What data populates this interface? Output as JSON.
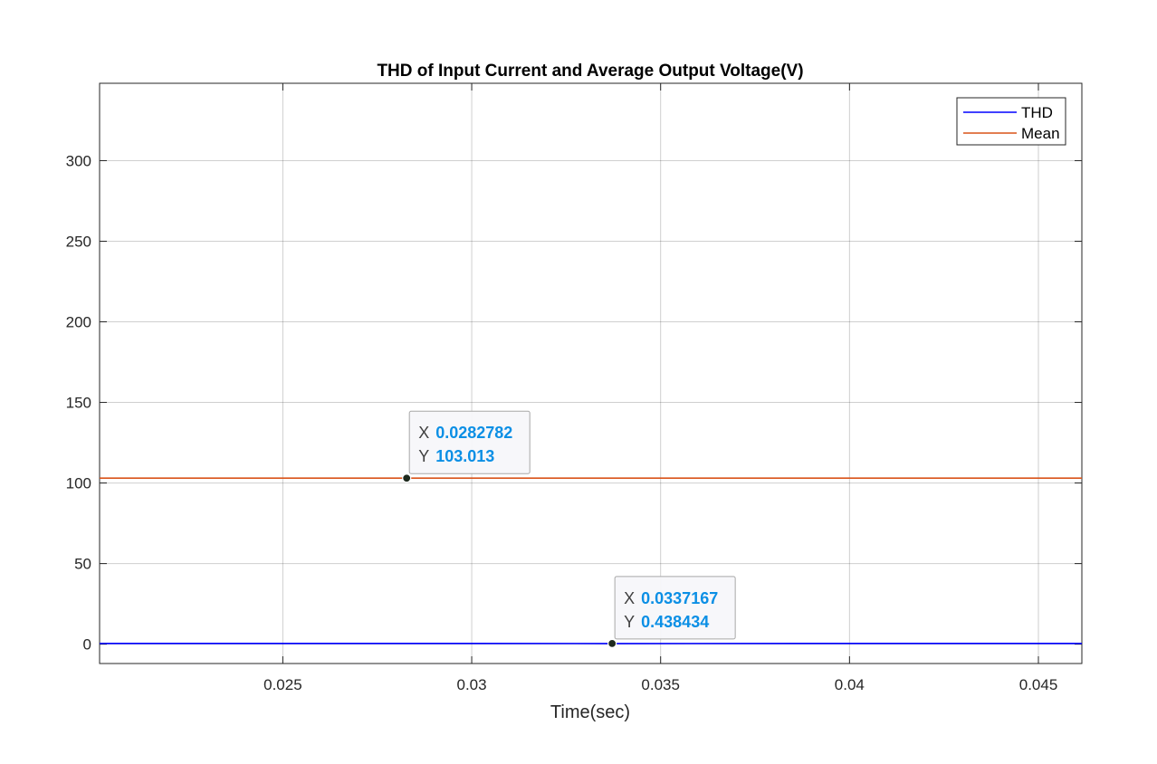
{
  "chart_data": {
    "type": "line",
    "title": "THD of Input Current and Average Output Voltage(V)",
    "xlabel": "Time(sec)",
    "ylabel": "",
    "xlim": [
      0.02015,
      0.04615
    ],
    "ylim": [
      -12,
      348
    ],
    "xticks": [
      0.025,
      0.03,
      0.035,
      0.04,
      0.045
    ],
    "xtick_labels": [
      "0.025",
      "0.03",
      "0.035",
      "0.04",
      "0.045"
    ],
    "yticks": [
      0,
      50,
      100,
      150,
      200,
      250,
      300
    ],
    "ytick_labels": [
      "0",
      "50",
      "100",
      "150",
      "200",
      "250",
      "300"
    ],
    "grid": true,
    "legend_position": "top-right",
    "series": [
      {
        "name": "THD",
        "color": "#0000ff",
        "x": [
          0.02015,
          0.025,
          0.03,
          0.0337167,
          0.04,
          0.045,
          0.04615
        ],
        "y": [
          0.44,
          0.44,
          0.44,
          0.438434,
          0.44,
          0.44,
          0.44
        ]
      },
      {
        "name": "Mean",
        "color": "#d95319",
        "x": [
          0.02015,
          0.025,
          0.0282782,
          0.03,
          0.035,
          0.04,
          0.045,
          0.04615
        ],
        "y": [
          103.0,
          103.02,
          103.013,
          103.01,
          103.0,
          103.0,
          103.0,
          103.0
        ]
      }
    ],
    "datatips": [
      {
        "x": 0.0282782,
        "y": 103.013,
        "x_prefix": "X",
        "x_text": "0.0282782",
        "y_prefix": "Y",
        "y_text": "103.013"
      },
      {
        "x": 0.0337167,
        "y": 0.438434,
        "x_prefix": "X",
        "x_text": "0.0337167",
        "y_prefix": "Y",
        "y_text": "0.438434"
      }
    ],
    "colors": {
      "axes": "#262626",
      "grid": "#262626",
      "tip_value": "#0b8fe5",
      "tip_border": "#a8a8a8",
      "marker_fill": "#1e2a1e"
    }
  }
}
